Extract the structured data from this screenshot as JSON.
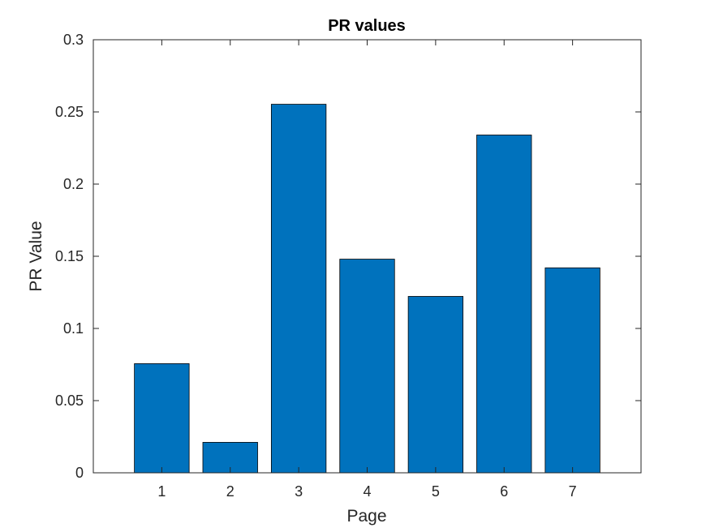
{
  "chart_data": {
    "type": "bar",
    "title": "PR values",
    "xlabel": "Page",
    "ylabel": "PR Value",
    "categories": [
      "1",
      "2",
      "3",
      "4",
      "5",
      "6",
      "7"
    ],
    "values": [
      0.0756,
      0.0211,
      0.2553,
      0.148,
      0.1222,
      0.234,
      0.142
    ],
    "xlim": [
      0,
      8
    ],
    "ylim": [
      0,
      0.3
    ],
    "yticks": [
      0,
      0.05,
      0.1,
      0.15,
      0.2,
      0.25,
      0.3
    ],
    "ytick_labels": [
      "0",
      "0.05",
      "0.1",
      "0.15",
      "0.2",
      "0.25",
      "0.3"
    ],
    "bar_color": "#0072BD",
    "bar_edge_color": "#000000",
    "grid": false,
    "legend": "none"
  }
}
